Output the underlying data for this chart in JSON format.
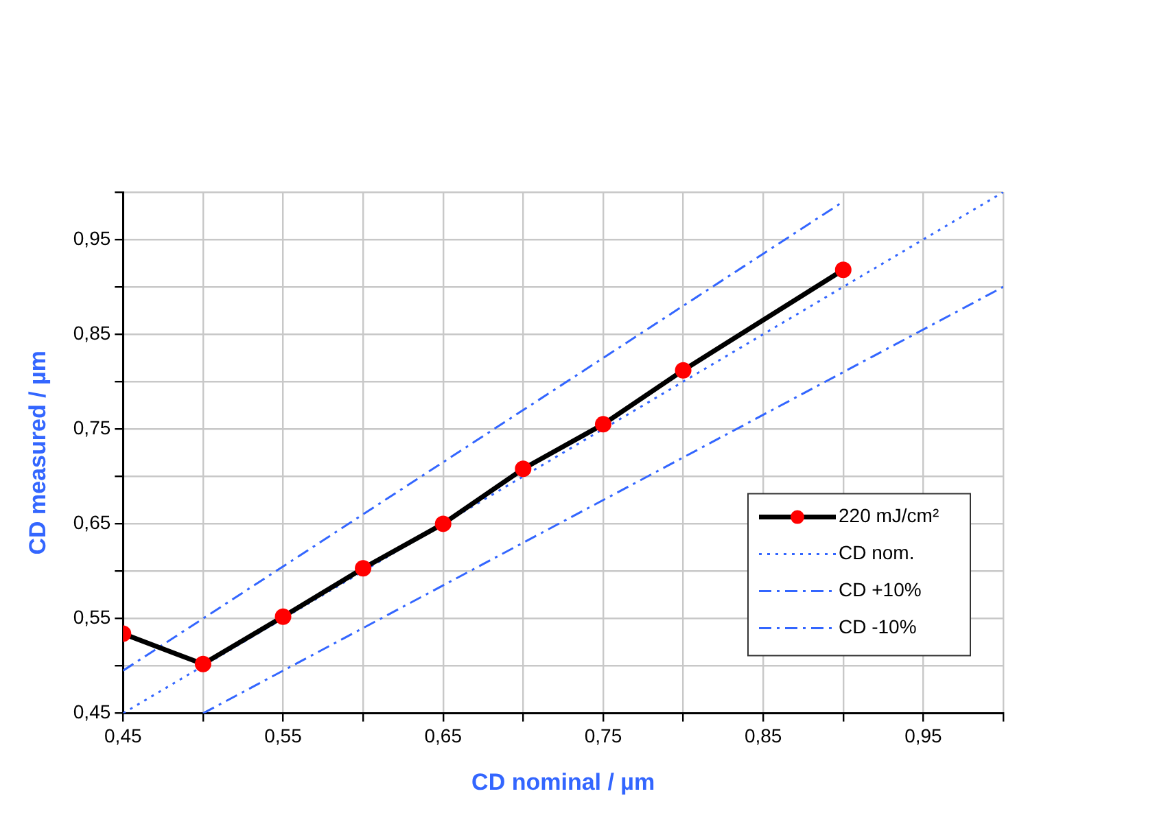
{
  "chart_data": {
    "type": "line",
    "xlabel": "CD nominal / µm",
    "ylabel": "CD measured / µm",
    "xlim": [
      0.45,
      1.0
    ],
    "ylim": [
      0.45,
      1.0
    ],
    "xticks": [
      {
        "value": 0.45,
        "label": "0,45"
      },
      {
        "value": 0.5,
        "label": null
      },
      {
        "value": 0.55,
        "label": "0,55"
      },
      {
        "value": 0.6,
        "label": null
      },
      {
        "value": 0.65,
        "label": "0,65"
      },
      {
        "value": 0.7,
        "label": null
      },
      {
        "value": 0.75,
        "label": "0,75"
      },
      {
        "value": 0.8,
        "label": null
      },
      {
        "value": 0.85,
        "label": "0,85"
      },
      {
        "value": 0.9,
        "label": null
      },
      {
        "value": 0.95,
        "label": "0,95"
      },
      {
        "value": 1.0,
        "label": null
      }
    ],
    "yticks": [
      {
        "value": 0.45,
        "label": "0,45"
      },
      {
        "value": 0.5,
        "label": null
      },
      {
        "value": 0.55,
        "label": "0,55"
      },
      {
        "value": 0.6,
        "label": null
      },
      {
        "value": 0.65,
        "label": "0,65"
      },
      {
        "value": 0.7,
        "label": null
      },
      {
        "value": 0.75,
        "label": "0,75"
      },
      {
        "value": 0.8,
        "label": null
      },
      {
        "value": 0.85,
        "label": "0,85"
      },
      {
        "value": 0.9,
        "label": null
      },
      {
        "value": 0.95,
        "label": "0,95"
      },
      {
        "value": 1.0,
        "label": null
      }
    ],
    "grid": true,
    "legend": "bottom right",
    "series": [
      {
        "name": "220 mJ/cm²",
        "color": "#000000",
        "marker": "circle",
        "line_style": "solid",
        "x": [
          0.45,
          0.5,
          0.55,
          0.6,
          0.65,
          0.7,
          0.75,
          0.8,
          0.9
        ],
        "values": [
          0.534,
          0.502,
          0.552,
          0.603,
          0.65,
          0.708,
          0.755,
          0.812,
          0.918
        ]
      },
      {
        "name": "CD nom.",
        "color": "#3366ff",
        "marker": "none",
        "line_style": "dotted",
        "x": [
          0.45,
          1.0
        ],
        "values": [
          0.45,
          1.0
        ]
      },
      {
        "name": "CD +10%",
        "color": "#3366ff",
        "marker": "none",
        "line_style": "dashdot",
        "x": [
          0.45,
          0.9
        ],
        "values": [
          0.495,
          0.99
        ]
      },
      {
        "name": "CD -10%",
        "color": "#3366ff",
        "marker": "none",
        "line_style": "dashdot",
        "x": [
          0.5,
          1.0
        ],
        "values": [
          0.45,
          0.9
        ]
      }
    ]
  }
}
